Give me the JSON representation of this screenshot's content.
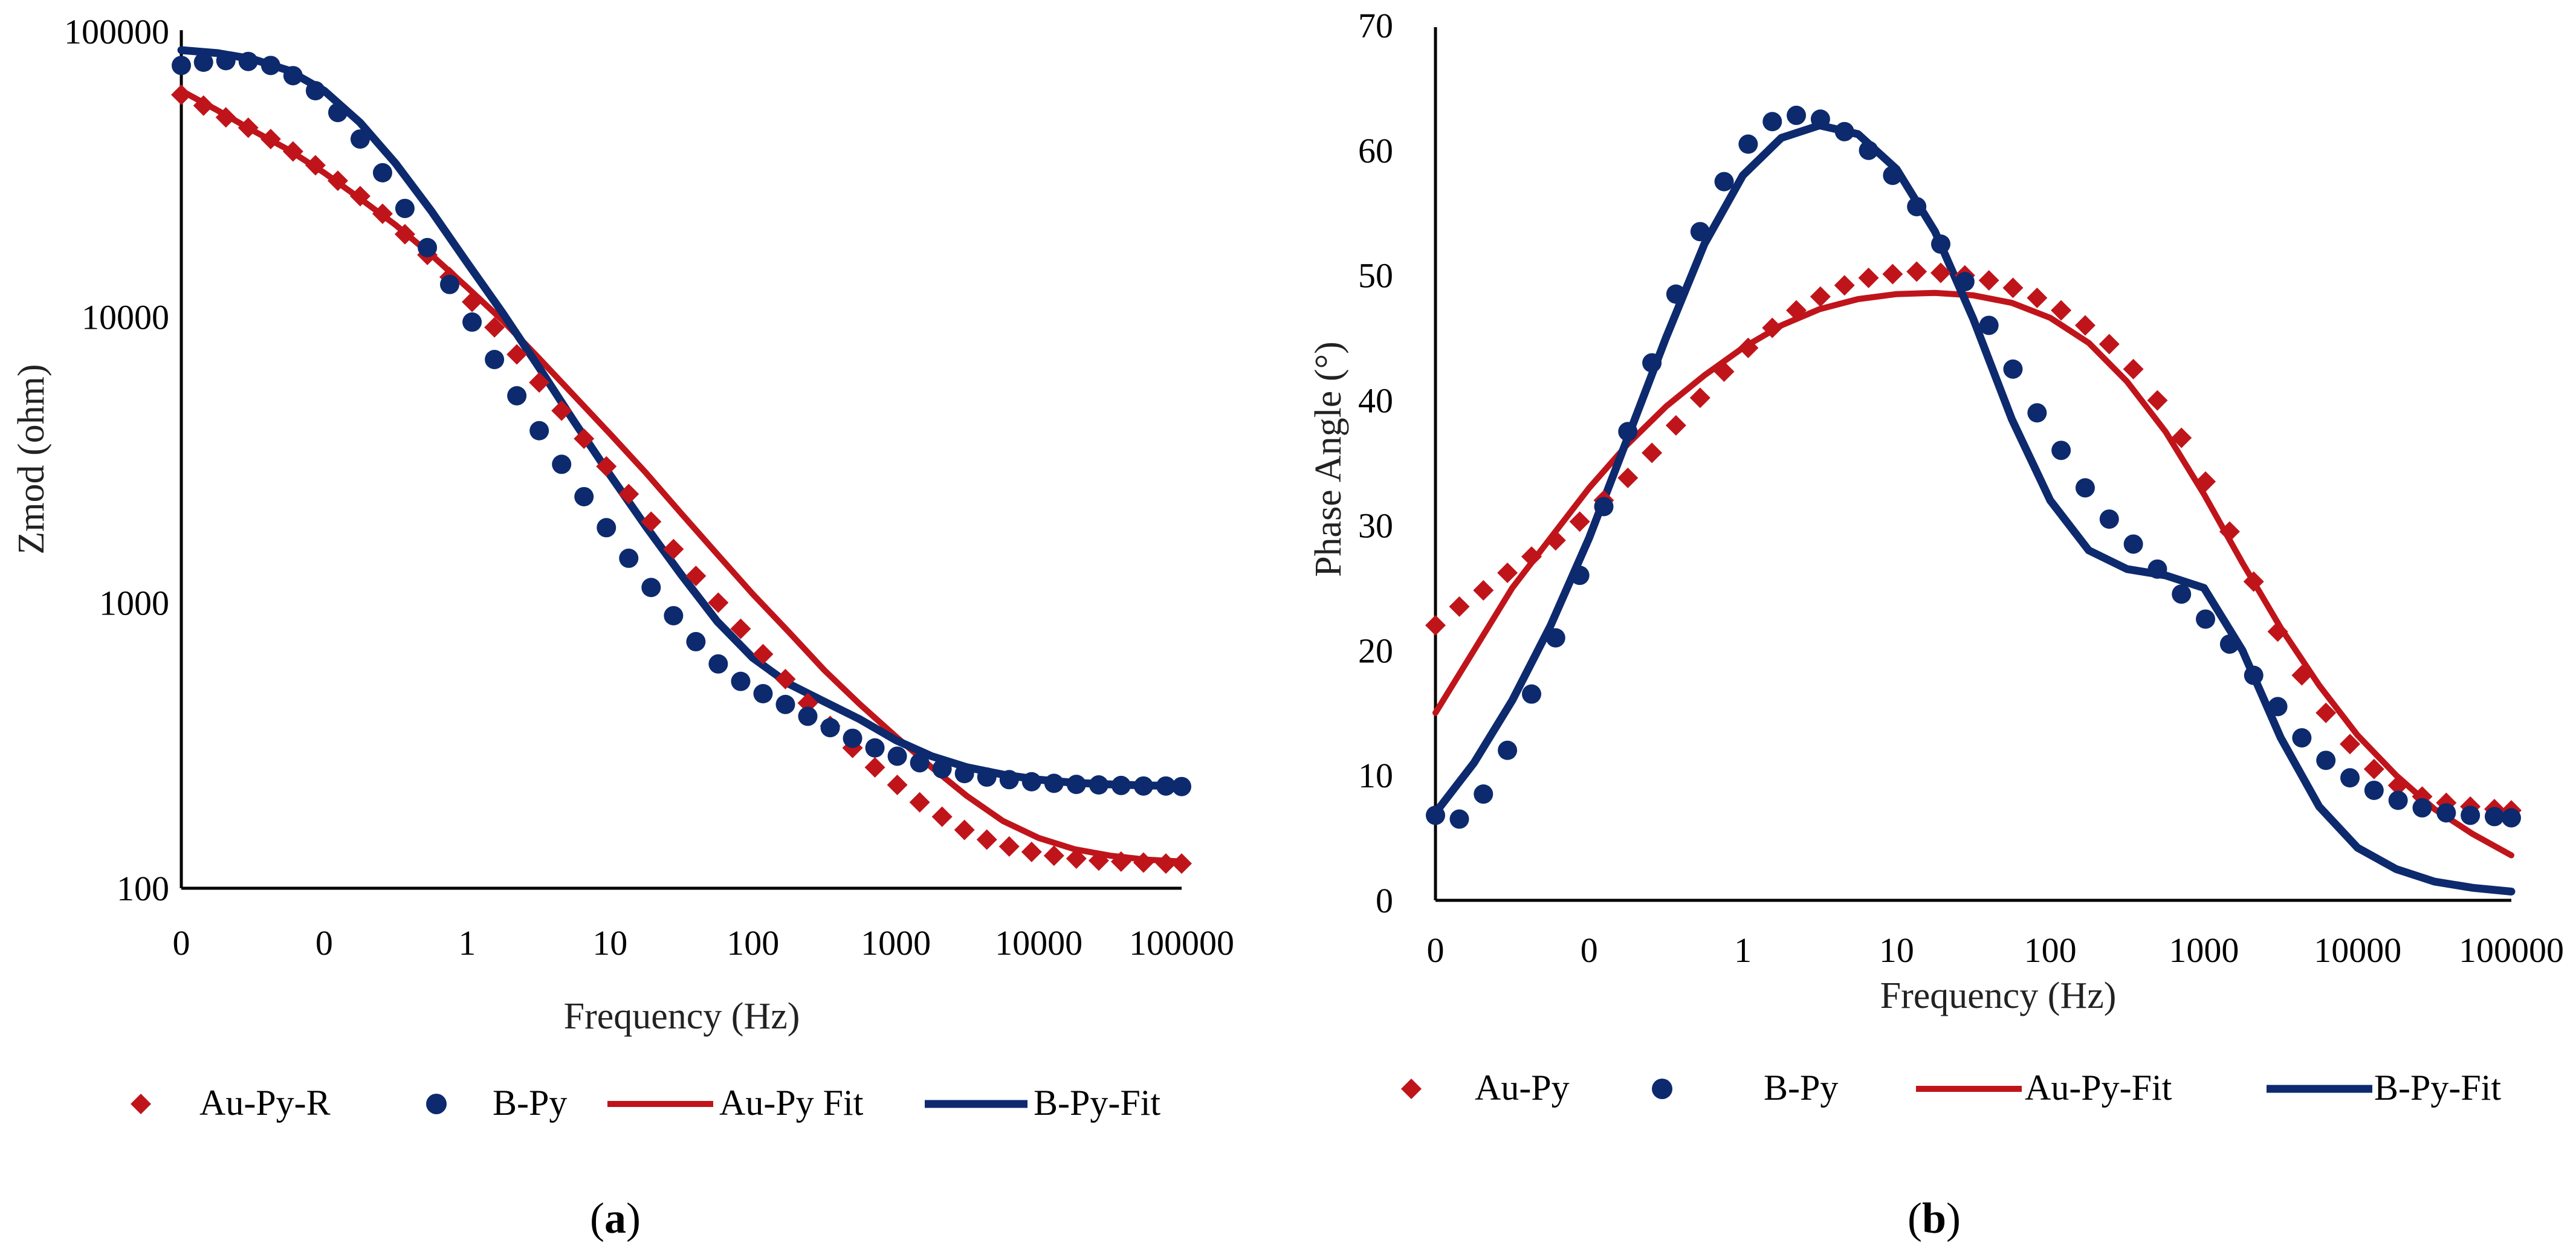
{
  "colors": {
    "au": "#c0141b",
    "b": "#0d2a6e",
    "axis": "#000000"
  },
  "chart_data": [
    {
      "type": "scatter",
      "panel": "a",
      "panel_label": "a",
      "title": "",
      "xlabel": "Frequency (Hz)",
      "ylabel": "Zmod (ohm)",
      "x_scale": "log",
      "y_scale": "log",
      "xlim": [
        0.01,
        100000
      ],
      "ylim": [
        100,
        100000
      ],
      "x_tick_values": [
        0.01,
        0.1,
        1,
        10,
        100,
        1000,
        10000,
        100000
      ],
      "x_tick_labels": [
        "0",
        "0",
        "1",
        "10",
        "100",
        "1000",
        "10000",
        "100000"
      ],
      "y_tick_values": [
        100,
        1000,
        10000,
        100000
      ],
      "y_tick_labels": [
        "100",
        "1000",
        "10000",
        "100000"
      ],
      "legend_position": "bottom",
      "series": [
        {
          "name": "Au-Py-R",
          "kind": "markers",
          "marker": "diamond",
          "color": "#c0141b",
          "x": [
            0.01,
            0.0143,
            0.0205,
            0.0294,
            0.0422,
            0.0605,
            0.0868,
            0.1245,
            0.1785,
            0.256,
            0.367,
            0.527,
            0.755,
            1.083,
            1.554,
            2.228,
            3.196,
            4.584,
            6.574,
            9.43,
            13.52,
            19.39,
            27.82,
            39.9,
            57.2,
            82.1,
            117.7,
            168.8,
            242.1,
            347.3,
            498,
            714,
            1024,
            1469,
            2107,
            3022,
            4334,
            6216,
            8915,
            12785,
            18338,
            26300,
            37720,
            54100,
            77600,
            100000
          ],
          "y": [
            60000,
            55000,
            50000,
            46000,
            42000,
            38000,
            34000,
            30000,
            26500,
            23000,
            19500,
            16500,
            13800,
            11300,
            9200,
            7400,
            5900,
            4700,
            3750,
            3000,
            2400,
            1920,
            1540,
            1240,
            1000,
            810,
            660,
            540,
            445,
            370,
            310,
            265,
            230,
            200,
            178,
            160,
            148,
            140,
            134,
            130,
            127,
            125,
            124,
            123,
            122,
            122
          ]
        },
        {
          "name": "B-Py",
          "kind": "markers",
          "marker": "circle",
          "color": "#0d2a6e",
          "x": [
            0.01,
            0.0143,
            0.0205,
            0.0294,
            0.0422,
            0.0605,
            0.0868,
            0.1245,
            0.1785,
            0.256,
            0.367,
            0.527,
            0.755,
            1.083,
            1.554,
            2.228,
            3.196,
            4.584,
            6.574,
            9.43,
            13.52,
            19.39,
            27.82,
            39.9,
            57.2,
            82.1,
            117.7,
            168.8,
            242.1,
            347.3,
            498,
            714,
            1024,
            1469,
            2107,
            3022,
            4334,
            6216,
            8915,
            12785,
            18338,
            26300,
            37720,
            54100,
            77600,
            100000
          ],
          "y": [
            76000,
            78000,
            79000,
            78500,
            76000,
            70000,
            62000,
            52000,
            42000,
            32000,
            24000,
            17500,
            13000,
            9600,
            7100,
            5300,
            4000,
            3050,
            2350,
            1830,
            1430,
            1130,
            900,
            730,
            610,
            530,
            480,
            440,
            400,
            365,
            335,
            310,
            290,
            275,
            262,
            252,
            245,
            240,
            236,
            233,
            231,
            230,
            229,
            228,
            228,
            227
          ]
        },
        {
          "name": "Au-Py Fit",
          "kind": "line",
          "color": "#c0141b",
          "x": [
            0.01,
            0.0178,
            0.0316,
            0.0562,
            0.1,
            0.178,
            0.316,
            0.562,
            1,
            1.78,
            3.16,
            5.62,
            10,
            17.8,
            31.6,
            56.2,
            100,
            178,
            316,
            562,
            1000,
            1780,
            3160,
            5620,
            10000,
            17800,
            31600,
            56200,
            100000
          ],
          "y": [
            62000,
            53000,
            45000,
            38500,
            32000,
            26000,
            21000,
            16500,
            12700,
            9700,
            7200,
            5300,
            3900,
            2850,
            2050,
            1480,
            1070,
            790,
            580,
            440,
            340,
            265,
            210,
            172,
            150,
            137,
            130,
            126,
            124
          ]
        },
        {
          "name": "B-Py-Fit",
          "kind": "line",
          "color": "#0d2a6e",
          "x": [
            0.01,
            0.0178,
            0.0316,
            0.0562,
            0.1,
            0.178,
            0.316,
            0.562,
            1,
            1.78,
            3.16,
            5.62,
            10,
            17.8,
            31.6,
            56.2,
            100,
            178,
            316,
            562,
            1000,
            1780,
            3160,
            5620,
            10000,
            17800,
            31600,
            56200,
            100000
          ],
          "y": [
            86000,
            84000,
            80000,
            73000,
            62000,
            48000,
            34500,
            23500,
            15500,
            10300,
            6700,
            4300,
            2800,
            1850,
            1250,
            860,
            640,
            520,
            450,
            390,
            330,
            290,
            265,
            250,
            240,
            234,
            231,
            229,
            228
          ]
        }
      ]
    },
    {
      "type": "scatter",
      "panel": "b",
      "panel_label": "b",
      "title": "",
      "xlabel": "Frequency (Hz)",
      "ylabel": "Phase Angle (°)",
      "x_scale": "log",
      "y_scale": "linear",
      "xlim": [
        0.01,
        100000
      ],
      "ylim": [
        0,
        70
      ],
      "x_tick_values": [
        0.01,
        0.1,
        1,
        10,
        100,
        1000,
        10000,
        100000
      ],
      "x_tick_labels": [
        "0",
        "0",
        "1",
        "10",
        "100",
        "1000",
        "10000",
        "100000"
      ],
      "y_tick_values": [
        0,
        10,
        20,
        30,
        40,
        50,
        60,
        70
      ],
      "y_tick_labels": [
        "0",
        "10",
        "20",
        "30",
        "40",
        "50",
        "60",
        "70"
      ],
      "legend_position": "bottom",
      "series": [
        {
          "name": "Au-Py",
          "kind": "markers",
          "marker": "diamond",
          "color": "#c0141b",
          "x": [
            0.01,
            0.0143,
            0.0205,
            0.0294,
            0.0422,
            0.0605,
            0.0868,
            0.1245,
            0.1785,
            0.256,
            0.367,
            0.527,
            0.755,
            1.083,
            1.554,
            2.228,
            3.196,
            4.584,
            6.574,
            9.43,
            13.52,
            19.39,
            27.82,
            39.9,
            57.2,
            82.1,
            117.7,
            168.8,
            242.1,
            347.3,
            498,
            714,
            1024,
            1469,
            2107,
            3022,
            4334,
            6216,
            8915,
            12785,
            18338,
            26300,
            37720,
            54100,
            77600,
            100000
          ],
          "y": [
            22,
            23.5,
            24.8,
            26.2,
            27.5,
            28.8,
            30.3,
            32,
            33.8,
            35.8,
            38,
            40.2,
            42.3,
            44.2,
            45.8,
            47.2,
            48.3,
            49.2,
            49.8,
            50.1,
            50.3,
            50.2,
            50,
            49.6,
            49,
            48.2,
            47.2,
            46,
            44.5,
            42.5,
            40,
            37,
            33.5,
            29.5,
            25.5,
            21.5,
            18,
            15,
            12.5,
            10.5,
            9.2,
            8.3,
            7.8,
            7.5,
            7.3,
            7.2
          ]
        },
        {
          "name": "B-Py",
          "kind": "markers",
          "marker": "circle",
          "color": "#0d2a6e",
          "x": [
            0.01,
            0.0143,
            0.0205,
            0.0294,
            0.0422,
            0.0605,
            0.0868,
            0.1245,
            0.1785,
            0.256,
            0.367,
            0.527,
            0.755,
            1.083,
            1.554,
            2.228,
            3.196,
            4.584,
            6.574,
            9.43,
            13.52,
            19.39,
            27.82,
            39.9,
            57.2,
            82.1,
            117.7,
            168.8,
            242.1,
            347.3,
            498,
            714,
            1024,
            1469,
            2107,
            3022,
            4334,
            6216,
            8915,
            12785,
            18338,
            26300,
            37720,
            54100,
            77600,
            100000
          ],
          "y": [
            6.8,
            6.5,
            8.5,
            12,
            16.5,
            21,
            26,
            31.5,
            37.5,
            43,
            48.5,
            53.5,
            57.5,
            60.5,
            62.3,
            62.8,
            62.5,
            61.5,
            60,
            58,
            55.5,
            52.5,
            49.5,
            46,
            42.5,
            39,
            36,
            33,
            30.5,
            28.5,
            26.5,
            24.5,
            22.5,
            20.5,
            18,
            15.5,
            13,
            11.2,
            9.8,
            8.8,
            8,
            7.4,
            7,
            6.8,
            6.7,
            6.6
          ]
        },
        {
          "name": "Au-Py-Fit",
          "kind": "line",
          "color": "#c0141b",
          "x": [
            0.01,
            0.0178,
            0.0316,
            0.0562,
            0.1,
            0.178,
            0.316,
            0.562,
            1,
            1.78,
            3.16,
            5.62,
            10,
            17.8,
            31.6,
            56.2,
            100,
            178,
            316,
            562,
            1000,
            1780,
            3160,
            5620,
            10000,
            17800,
            31600,
            56200,
            100000
          ],
          "y": [
            15,
            20,
            25,
            29,
            33,
            36.5,
            39.5,
            42,
            44.2,
            46,
            47.3,
            48.1,
            48.5,
            48.6,
            48.4,
            47.8,
            46.6,
            44.6,
            41.5,
            37.5,
            32.5,
            27,
            21.8,
            17.2,
            13.2,
            10,
            7.3,
            5.3,
            3.6
          ]
        },
        {
          "name": "B-Py-Fit",
          "kind": "line",
          "color": "#0d2a6e",
          "x": [
            0.01,
            0.0178,
            0.0316,
            0.0562,
            0.1,
            0.178,
            0.316,
            0.562,
            1,
            1.78,
            3.16,
            5.62,
            10,
            17.8,
            31.6,
            56.2,
            100,
            178,
            316,
            562,
            1000,
            1780,
            3160,
            5620,
            10000,
            17800,
            31600,
            56200,
            100000
          ],
          "y": [
            7,
            11,
            16,
            22,
            29,
            37,
            45,
            52.5,
            58,
            61,
            62,
            61.3,
            58.5,
            53.5,
            46.5,
            38.5,
            32,
            28,
            26.5,
            26,
            25,
            20,
            13,
            7.5,
            4.2,
            2.5,
            1.5,
            1,
            0.7
          ]
        }
      ]
    }
  ]
}
